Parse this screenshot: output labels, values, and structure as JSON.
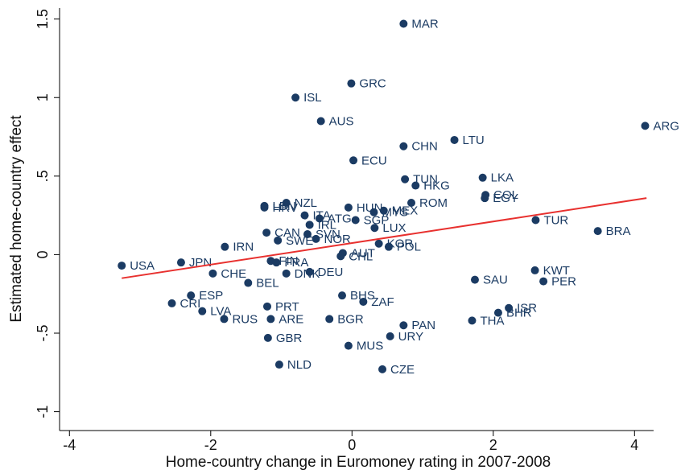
{
  "chart_data": {
    "type": "scatter",
    "x_label": "Home-country change in Euromoney rating in 2007-2008",
    "y_label": "Estimated home-country effect",
    "point_labels": [
      "MAR",
      "GRC",
      "ISL",
      "AUS",
      "ARG",
      "LTU",
      "CHN",
      "ECU",
      "TUN",
      "LKA",
      "HKG",
      "COL",
      "EGY",
      "NZL",
      "LBN",
      "HRV",
      "HUN",
      "ROM",
      "MYS",
      "MEX",
      "ITA",
      "ATG",
      "SGP",
      "IRL",
      "TUR",
      "LUX",
      "SVN",
      "CAN",
      "BRA",
      "NOR",
      "SWE",
      "IRN",
      "KOR",
      "POL",
      "AUT",
      "CHL",
      "USA",
      "JPN",
      "FIN",
      "FRA",
      "CHE",
      "DNK",
      "DEU",
      "BEL",
      "SAU",
      "KWT",
      "PER",
      "BHS",
      "ESP",
      "ZAF",
      "CRI",
      "PRT",
      "LVA",
      "ISR",
      "BHR",
      "RUS",
      "ARE",
      "BGR",
      "THA",
      "PAN",
      "URY",
      "GBR",
      "MUS",
      "NLD",
      "CZE"
    ],
    "x": [
      0.73,
      -0.01,
      -0.8,
      -0.44,
      4.15,
      1.45,
      0.73,
      0.02,
      0.75,
      1.85,
      0.9,
      1.89,
      1.88,
      -0.93,
      -1.24,
      -1.24,
      -0.05,
      0.84,
      0.31,
      0.45,
      -0.67,
      -0.46,
      0.05,
      -0.6,
      2.6,
      0.32,
      -0.63,
      -1.21,
      3.48,
      -0.51,
      -1.05,
      -1.8,
      0.38,
      0.52,
      -0.13,
      -0.16,
      -3.26,
      -2.42,
      -1.15,
      -1.07,
      -1.97,
      -0.93,
      -0.6,
      -1.47,
      1.74,
      2.59,
      2.71,
      -0.14,
      -2.28,
      0.16,
      -2.55,
      -1.2,
      -2.12,
      2.22,
      2.07,
      -1.81,
      -1.15,
      -0.32,
      1.7,
      0.73,
      0.54,
      -1.19,
      -0.05,
      -1.03,
      0.43
    ],
    "values": [
      1.47,
      1.09,
      1.0,
      0.85,
      0.82,
      0.73,
      0.69,
      0.6,
      0.48,
      0.49,
      0.44,
      0.38,
      0.36,
      0.33,
      0.31,
      0.3,
      0.3,
      0.33,
      0.27,
      0.28,
      0.25,
      0.23,
      0.22,
      0.19,
      0.22,
      0.17,
      0.13,
      0.14,
      0.15,
      0.1,
      0.09,
      0.05,
      0.07,
      0.05,
      0.01,
      -0.01,
      -0.07,
      -0.05,
      -0.04,
      -0.05,
      -0.12,
      -0.12,
      -0.11,
      -0.18,
      -0.16,
      -0.1,
      -0.17,
      -0.26,
      -0.26,
      -0.3,
      -0.31,
      -0.33,
      -0.36,
      -0.34,
      -0.37,
      -0.41,
      -0.41,
      -0.41,
      -0.42,
      -0.45,
      -0.52,
      -0.53,
      -0.58,
      -0.7,
      -0.73
    ],
    "color": "#1b3b63",
    "fit_line": {
      "x": [
        -3.26,
        4.17
      ],
      "y": [
        -0.15,
        0.36
      ],
      "color": "#e8312f"
    },
    "xlim": [
      -4.14,
      4.27
    ],
    "ylim": [
      -1.12,
      1.57
    ],
    "xticks": [
      -4,
      -2,
      0,
      2,
      4
    ],
    "yticks": [
      {
        "value": -1,
        "label": "-1"
      },
      {
        "value": -0.5,
        "label": "-.5"
      },
      0,
      {
        "value": 0.5,
        "label": ".5"
      },
      1,
      1.5
    ]
  }
}
